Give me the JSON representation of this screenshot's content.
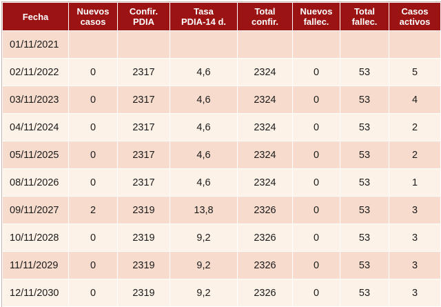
{
  "table": {
    "headers": [
      "Fecha",
      "Nuevos\ncasos",
      "Confir.\nPDIA",
      "Tasa\nPDIA-14 d.",
      "Total\nconfir.",
      "Nuevos\nfallec.",
      "Total\nfallec.",
      "Casos\nactivos"
    ],
    "rows": [
      [
        "01/11/2021",
        "",
        "",
        "",
        "",
        "",
        "",
        ""
      ],
      [
        "02/11/2022",
        "0",
        "2317",
        "4,6",
        "2324",
        "0",
        "53",
        "5"
      ],
      [
        "03/11/2023",
        "0",
        "2317",
        "4,6",
        "2324",
        "0",
        "53",
        "4"
      ],
      [
        "04/11/2024",
        "0",
        "2317",
        "4,6",
        "2324",
        "0",
        "53",
        "2"
      ],
      [
        "05/11/2025",
        "0",
        "2317",
        "4,6",
        "2324",
        "0",
        "53",
        "2"
      ],
      [
        "08/11/2026",
        "0",
        "2317",
        "4,6",
        "2324",
        "0",
        "53",
        "1"
      ],
      [
        "09/11/2027",
        "2",
        "2319",
        "13,8",
        "2326",
        "0",
        "53",
        "3"
      ],
      [
        "10/11/2028",
        "0",
        "2319",
        "9,2",
        "2326",
        "0",
        "53",
        "3"
      ],
      [
        "11/11/2029",
        "0",
        "2319",
        "9,2",
        "2326",
        "0",
        "53",
        "3"
      ],
      [
        "12/11/2030",
        "0",
        "2319",
        "9,2",
        "2326",
        "0",
        "53",
        "3"
      ]
    ]
  },
  "colors": {
    "header_bg": "#9b1313",
    "header_text": "#ffffff",
    "row_odd": "#f7dccd",
    "row_even": "#fdf2e8"
  }
}
